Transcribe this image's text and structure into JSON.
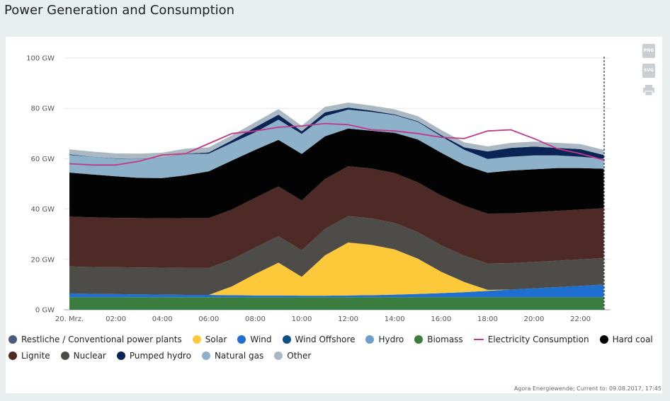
{
  "page": {
    "title": "Power Generation and Consumption",
    "source": "Agora Energiewende; Current to: 09.08.2017, 17:45"
  },
  "tools": [
    {
      "label": "PNG",
      "icon": "png-export-icon"
    },
    {
      "label": "SVG",
      "icon": "svg-export-icon"
    },
    {
      "label": "",
      "icon": "print-icon"
    }
  ],
  "chart_data": {
    "type": "area",
    "title": "Power Generation and Consumption",
    "stacked": true,
    "y_unit": "GW",
    "ylim": [
      0,
      100
    ],
    "y_ticks": [
      "0 GW",
      "20 GW",
      "40 GW",
      "60 GW",
      "80 GW",
      "100 GW"
    ],
    "x_ticks": [
      "20. Mrz.",
      "02:00",
      "04:00",
      "06:00",
      "08:00",
      "10:00",
      "12:00",
      "14:00",
      "16:00",
      "18:00",
      "20:00",
      "22:00"
    ],
    "x_hours": [
      0,
      1,
      2,
      3,
      4,
      5,
      6,
      7,
      8,
      9,
      10,
      11,
      12,
      13,
      14,
      15,
      16,
      17,
      18,
      19,
      20,
      21,
      22,
      23
    ],
    "grid": true,
    "legend_position": "bottom",
    "series": [
      {
        "name": "Biomass",
        "color": "#3b7d3e",
        "values": [
          5,
          5,
          5,
          5,
          5,
          5,
          5,
          5,
          5,
          5,
          5,
          5,
          5,
          5,
          5,
          5,
          5,
          5,
          5,
          5,
          5,
          5,
          5,
          5
        ]
      },
      {
        "name": "Wind",
        "color": "#1f6fd0",
        "values": [
          1.5,
          1.3,
          1.2,
          1.1,
          1.0,
          0.9,
          0.9,
          0.8,
          0.7,
          0.7,
          0.6,
          0.6,
          0.7,
          0.8,
          1.0,
          1.3,
          1.6,
          2.0,
          2.5,
          3.0,
          3.5,
          4.0,
          4.5,
          5.0
        ]
      },
      {
        "name": "Solar",
        "color": "#fcc93a",
        "values": [
          0,
          0,
          0,
          0,
          0,
          0,
          0,
          3.5,
          8.5,
          13,
          7.5,
          16,
          21,
          20,
          18,
          14,
          8.5,
          4,
          0.4,
          0,
          0,
          0,
          0,
          0
        ]
      },
      {
        "name": "Nuclear",
        "color": "#4e4c49",
        "values": [
          10.7,
          10.7,
          10.7,
          10.7,
          10.7,
          10.7,
          10.7,
          10.7,
          10.5,
          10.5,
          10.5,
          10.5,
          10.5,
          10.5,
          10.5,
          10.5,
          10.5,
          10.5,
          10.5,
          10.5,
          10.5,
          10.5,
          10.5,
          10.5
        ]
      },
      {
        "name": "Lignite",
        "color": "#4d2a25",
        "values": [
          19.8,
          19.7,
          19.6,
          19.6,
          19.6,
          19.8,
          19.8,
          19.8,
          19.8,
          19.8,
          19.8,
          19.8,
          19.8,
          19.8,
          19.8,
          19.8,
          19.8,
          19.8,
          19.8,
          19.8,
          19.8,
          19.8,
          19.8,
          19.8
        ]
      },
      {
        "name": "Hard coal",
        "color": "#030303",
        "values": [
          17.5,
          17,
          16.5,
          16,
          16,
          17,
          18.6,
          19.5,
          19,
          18.5,
          18.5,
          17,
          15,
          15,
          16,
          17,
          17,
          16.2,
          16.2,
          17,
          17,
          17,
          16.5,
          15.7
        ]
      },
      {
        "name": "Natural gas",
        "color": "#8cb1c9",
        "values": [
          7,
          7,
          7,
          7.5,
          8,
          8.5,
          7,
          7,
          7,
          8,
          8,
          8,
          7.5,
          7.5,
          7,
          7,
          6.5,
          6,
          5.5,
          5.5,
          5.5,
          5,
          4.5,
          4
        ]
      },
      {
        "name": "Pumped hydro",
        "color": "#0a2456",
        "values": [
          0.2,
          0.1,
          0.1,
          0.1,
          0.1,
          0.1,
          0.5,
          1,
          2,
          2,
          1,
          1.5,
          0.8,
          0.5,
          0.3,
          0.3,
          0.5,
          1,
          3,
          3.5,
          3.5,
          3,
          3,
          1.5
        ]
      },
      {
        "name": "Other",
        "color": "#a9b8c3",
        "values": [
          2,
          2,
          2,
          2,
          2,
          2,
          2,
          2,
          2,
          2.2,
          2.2,
          2.2,
          2,
          2,
          2,
          2,
          2,
          2,
          2,
          2,
          2,
          2,
          2,
          2
        ]
      },
      {
        "name": "Hydro",
        "color": "#6b9fc8",
        "values": [
          0,
          0,
          0,
          0,
          0,
          0,
          0,
          0,
          0,
          0,
          0,
          0,
          0,
          0,
          0,
          0,
          0,
          0,
          0,
          0,
          0,
          0,
          0,
          0
        ]
      },
      {
        "name": "Wind Offshore",
        "color": "#0c4f8a",
        "values": [
          0,
          0,
          0,
          0,
          0,
          0,
          0,
          0,
          0,
          0,
          0,
          0,
          0,
          0,
          0,
          0,
          0,
          0,
          0,
          0,
          0,
          0,
          0,
          0
        ]
      },
      {
        "name": "Restliche / Conventional power plants",
        "color": "#4a5a78",
        "values": [
          0,
          0,
          0,
          0,
          0,
          0,
          0,
          0,
          0,
          0,
          0,
          0,
          0,
          0,
          0,
          0,
          0,
          0,
          0,
          0,
          0,
          0,
          0,
          0
        ]
      }
    ],
    "line_series": [
      {
        "name": "Electricity Consumption",
        "color": "#c0398a",
        "values": [
          58,
          57.5,
          57.5,
          59,
          61.5,
          62,
          66,
          70,
          71,
          72.5,
          73,
          74,
          73.5,
          71.5,
          71,
          70,
          68.5,
          68,
          71,
          71.5,
          68,
          64,
          62,
          59.5
        ]
      }
    ],
    "legend": [
      {
        "name": "Restliche / Conventional power plants",
        "color": "#4a5a78",
        "kind": "dot"
      },
      {
        "name": "Solar",
        "color": "#fcc93a",
        "kind": "dot"
      },
      {
        "name": "Wind",
        "color": "#1f6fd0",
        "kind": "dot"
      },
      {
        "name": "Wind Offshore",
        "color": "#0c4f8a",
        "kind": "dot"
      },
      {
        "name": "Hydro",
        "color": "#6b9fc8",
        "kind": "dot"
      },
      {
        "name": "Biomass",
        "color": "#3b7d3e",
        "kind": "dot"
      },
      {
        "name": "Electricity Consumption",
        "color": "#c0398a",
        "kind": "line"
      },
      {
        "name": "Hard coal",
        "color": "#030303",
        "kind": "dot"
      },
      {
        "name": "Lignite",
        "color": "#4d2a25",
        "kind": "dot"
      },
      {
        "name": "Nuclear",
        "color": "#4e4c49",
        "kind": "dot"
      },
      {
        "name": "Pumped hydro",
        "color": "#0a2456",
        "kind": "dot"
      },
      {
        "name": "Natural gas",
        "color": "#8cb1c9",
        "kind": "dot"
      },
      {
        "name": "Other",
        "color": "#a9b8c3",
        "kind": "dot"
      }
    ]
  }
}
